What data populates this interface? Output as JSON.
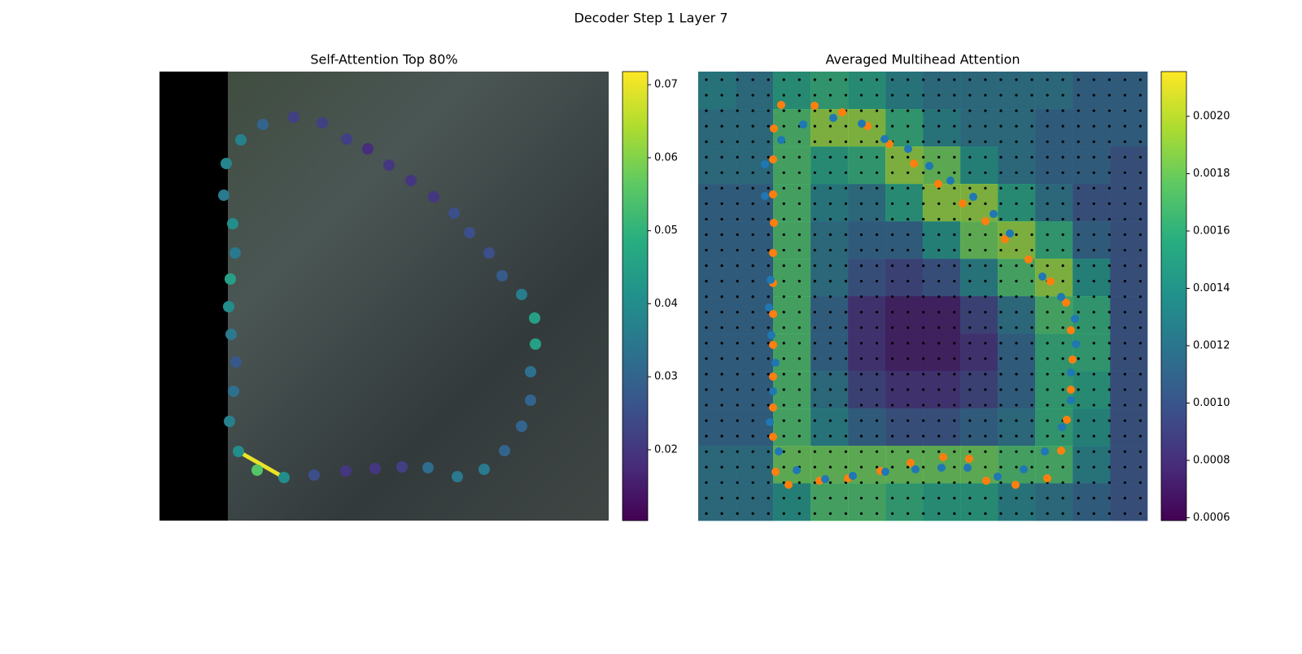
{
  "suptitle": "Decoder Step 1 Layer 7",
  "chart_data": [
    {
      "type": "scatter",
      "title": "Self-Attention Top 80%",
      "cmap": "viridis",
      "xlim": [
        0,
        552
      ],
      "ylim": [
        552,
        0
      ],
      "x": [
        127,
        165,
        200,
        230,
        256,
        282,
        309,
        337,
        362,
        381,
        405,
        421,
        445,
        461,
        462,
        456,
        456,
        445,
        424,
        399,
        366,
        330,
        298,
        265,
        229,
        190,
        153,
        120,
        97,
        86,
        91,
        94,
        88,
        85,
        87,
        93,
        90,
        79,
        82,
        100
      ],
      "y": [
        65,
        56,
        63,
        83,
        95,
        115,
        134,
        154,
        174,
        198,
        223,
        251,
        274,
        303,
        335,
        369,
        404,
        436,
        466,
        489,
        498,
        487,
        486,
        488,
        491,
        496,
        499,
        490,
        467,
        430,
        393,
        357,
        323,
        289,
        255,
        223,
        187,
        152,
        113,
        84
      ],
      "values": [
        0.03,
        0.022,
        0.022,
        0.022,
        0.018,
        0.02,
        0.02,
        0.02,
        0.025,
        0.025,
        0.025,
        0.028,
        0.036,
        0.045,
        0.045,
        0.033,
        0.03,
        0.03,
        0.03,
        0.035,
        0.035,
        0.032,
        0.022,
        0.02,
        0.02,
        0.025,
        0.04,
        0.055,
        0.04,
        0.037,
        0.033,
        0.027,
        0.035,
        0.04,
        0.045,
        0.035,
        0.04,
        0.035,
        0.038,
        0.037
      ],
      "edges": [
        {
          "from": 28,
          "to": 26,
          "value": 0.07
        }
      ],
      "colorbar": {
        "lim": [
          0.0103,
          0.0718
        ],
        "ticks": [
          0.02,
          0.03,
          0.04,
          0.05,
          0.06,
          0.07
        ]
      }
    },
    {
      "type": "heatmap",
      "title": "Averaged Multihead Attention",
      "cmap": "viridis",
      "xlim": [
        0,
        552
      ],
      "ylim": [
        552,
        0
      ],
      "z": [
        [
          0.0013,
          0.0012,
          0.0015,
          0.0016,
          0.0015,
          0.0013,
          0.0012,
          0.0012,
          0.0012,
          0.0012,
          0.0011,
          0.0011
        ],
        [
          0.0012,
          0.0012,
          0.0017,
          0.0019,
          0.0019,
          0.0016,
          0.0013,
          0.0012,
          0.0012,
          0.0011,
          0.0011,
          0.0011
        ],
        [
          0.0012,
          0.0012,
          0.0017,
          0.0015,
          0.0016,
          0.0019,
          0.0018,
          0.0014,
          0.0012,
          0.0011,
          0.0011,
          0.001
        ],
        [
          0.0011,
          0.0011,
          0.0017,
          0.0013,
          0.0012,
          0.0015,
          0.0019,
          0.0019,
          0.0015,
          0.0012,
          0.001,
          0.001
        ],
        [
          0.0011,
          0.0011,
          0.0017,
          0.0012,
          0.0011,
          0.0011,
          0.0014,
          0.0018,
          0.0019,
          0.0016,
          0.0011,
          0.001
        ],
        [
          0.0011,
          0.0011,
          0.0017,
          0.0012,
          0.001,
          0.0009,
          0.001,
          0.0013,
          0.0017,
          0.0019,
          0.0014,
          0.001
        ],
        [
          0.0011,
          0.0011,
          0.0017,
          0.0011,
          0.0008,
          0.0007,
          0.0007,
          0.0009,
          0.0012,
          0.0017,
          0.0016,
          0.001
        ],
        [
          0.0011,
          0.0011,
          0.0017,
          0.0011,
          0.0008,
          0.0007,
          0.0007,
          0.0008,
          0.0011,
          0.0016,
          0.0016,
          0.001
        ],
        [
          0.0011,
          0.0011,
          0.0017,
          0.0012,
          0.0009,
          0.0008,
          0.0008,
          0.0009,
          0.0011,
          0.0016,
          0.0015,
          0.001
        ],
        [
          0.0011,
          0.0011,
          0.0017,
          0.0013,
          0.0011,
          0.001,
          0.001,
          0.0011,
          0.0012,
          0.0016,
          0.0014,
          0.001
        ],
        [
          0.0012,
          0.0012,
          0.0018,
          0.0018,
          0.0018,
          0.0018,
          0.0018,
          0.0018,
          0.0017,
          0.0017,
          0.0013,
          0.001
        ],
        [
          0.0012,
          0.0012,
          0.0014,
          0.0017,
          0.0017,
          0.0016,
          0.0015,
          0.0015,
          0.0013,
          0.0012,
          0.0011,
          0.001
        ]
      ],
      "series": [
        {
          "color": "#ff7f0e",
          "x": [
            102,
            143,
            177,
            208,
            235,
            265,
            295,
            325,
            353,
            377,
            406,
            433,
            452,
            458,
            460,
            458,
            453,
            446,
            429,
            390,
            354,
            333,
            301,
            261,
            224,
            184,
            149,
            111,
            95,
            92,
            92,
            92,
            92,
            92,
            92,
            92,
            93,
            92,
            92,
            93
          ],
          "y": [
            41,
            42,
            50,
            67,
            89,
            113,
            138,
            162,
            184,
            206,
            231,
            258,
            284,
            318,
            354,
            391,
            428,
            466,
            500,
            508,
            503,
            476,
            474,
            481,
            491,
            500,
            503,
            508,
            492,
            449,
            413,
            375,
            336,
            298,
            260,
            223,
            186,
            151,
            108,
            70
          ]
        },
        {
          "color": "#1f77b4",
          "x": [
            129,
            166,
            201,
            229,
            258,
            284,
            310,
            338,
            363,
            383,
            423,
            446,
            463,
            464,
            458,
            458,
            447,
            426,
            400,
            368,
            331,
            299,
            267,
            230,
            190,
            156,
            121,
            99,
            88,
            92,
            95,
            90,
            87,
            89,
            82,
            82,
            102
          ],
          "y": [
            65,
            57,
            64,
            83,
            95,
            116,
            134,
            154,
            175,
            199,
            252,
            277,
            304,
            335,
            370,
            404,
            437,
            467,
            489,
            498,
            487,
            487,
            489,
            492,
            497,
            501,
            490,
            467,
            431,
            393,
            358,
            324,
            290,
            256,
            153,
            114,
            84
          ]
        }
      ],
      "colorbar": {
        "lim": [
          0.00059,
          0.002156
        ],
        "ticks": [
          0.0006,
          0.0008,
          {
            "value": 0.001,
            "label": "0.0010"
          },
          0.0012,
          0.0014,
          0.0016,
          0.0018,
          {
            "value": 0.002,
            "label": "0.0020"
          }
        ]
      }
    }
  ]
}
